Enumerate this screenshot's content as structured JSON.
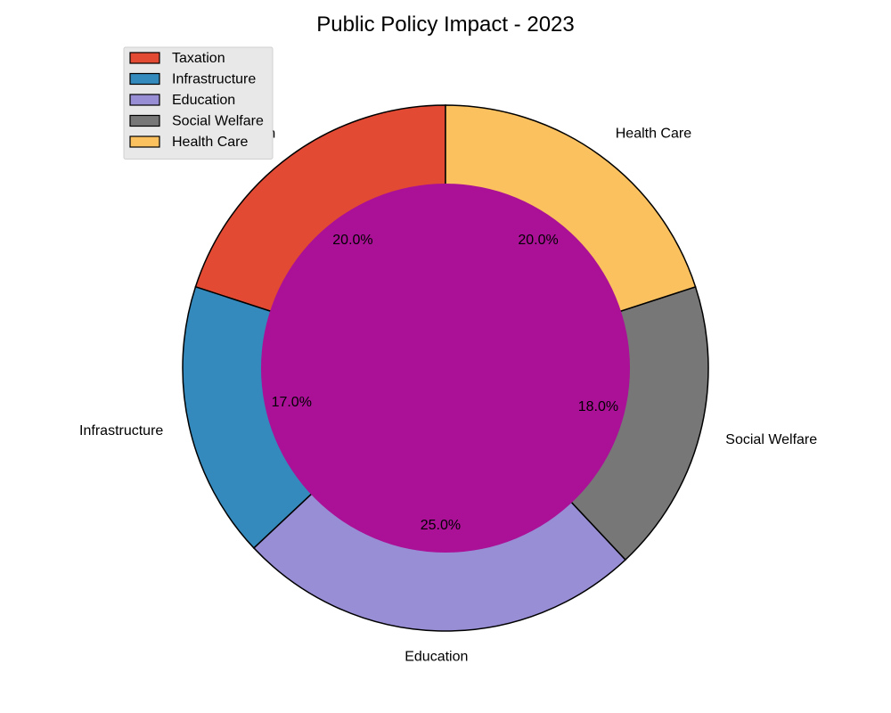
{
  "chart_data": {
    "type": "pie",
    "title": "Public Policy Impact - 2023",
    "categories": [
      "Taxation",
      "Infrastructure",
      "Education",
      "Social Welfare",
      "Health Care"
    ],
    "values": [
      20.0,
      17.0,
      25.0,
      18.0,
      20.0
    ],
    "value_labels": [
      "20.0%",
      "17.0%",
      "25.0%",
      "18.0%",
      "20.0%"
    ],
    "colors": [
      "#e24a33",
      "#348abd",
      "#988ed5",
      "#777777",
      "#fbc15e"
    ],
    "center_color": "#aa1197",
    "donut": true,
    "start_angle_deg": 90,
    "direction": "counterclockwise",
    "legend": {
      "placement": "top-left",
      "entries": [
        "Taxation",
        "Infrastructure",
        "Education",
        "Social Welfare",
        "Health Care"
      ]
    }
  }
}
